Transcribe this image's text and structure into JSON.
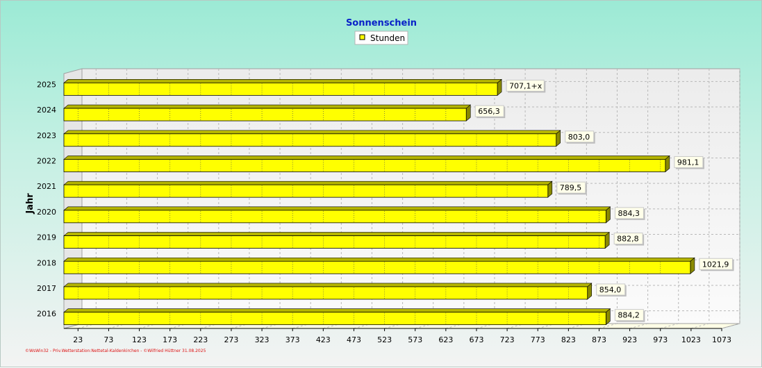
{
  "chart_data": {
    "type": "bar",
    "orientation": "horizontal",
    "title": "Sonnenschein",
    "ylabel": "Jahr",
    "xlabel": "",
    "legend": {
      "entries": [
        "Stunden"
      ],
      "placement": "top-center"
    },
    "categories": [
      "2025",
      "2024",
      "2023",
      "2022",
      "2021",
      "2020",
      "2019",
      "2018",
      "2017",
      "2016"
    ],
    "series": [
      {
        "name": "Stunden",
        "values": [
          707.1,
          656.3,
          803.0,
          981.1,
          789.5,
          884.3,
          882.8,
          1021.9,
          854.0,
          884.2
        ],
        "labels": [
          "707,1+x",
          "656,3",
          "803,0",
          "981,1",
          "789,5",
          "884,3",
          "882,8",
          "1021,9",
          "854,0",
          "884,2"
        ]
      }
    ],
    "xticks": [
      23,
      73,
      123,
      173,
      223,
      273,
      323,
      373,
      423,
      473,
      523,
      573,
      623,
      673,
      723,
      773,
      823,
      873,
      923,
      973,
      1023,
      1073
    ],
    "xlim": [
      0,
      1073
    ],
    "grid": true,
    "colors": {
      "bar": "#ffff00",
      "bar_dark": "#8a8a00",
      "title": "#0a22c8",
      "footer": "#d11111"
    }
  },
  "footer": "©WsWin32 - Priv.Wetterstation:Nettetal-Kaldenkirchen - ©Wilfried Hüttner 31.08.2025"
}
